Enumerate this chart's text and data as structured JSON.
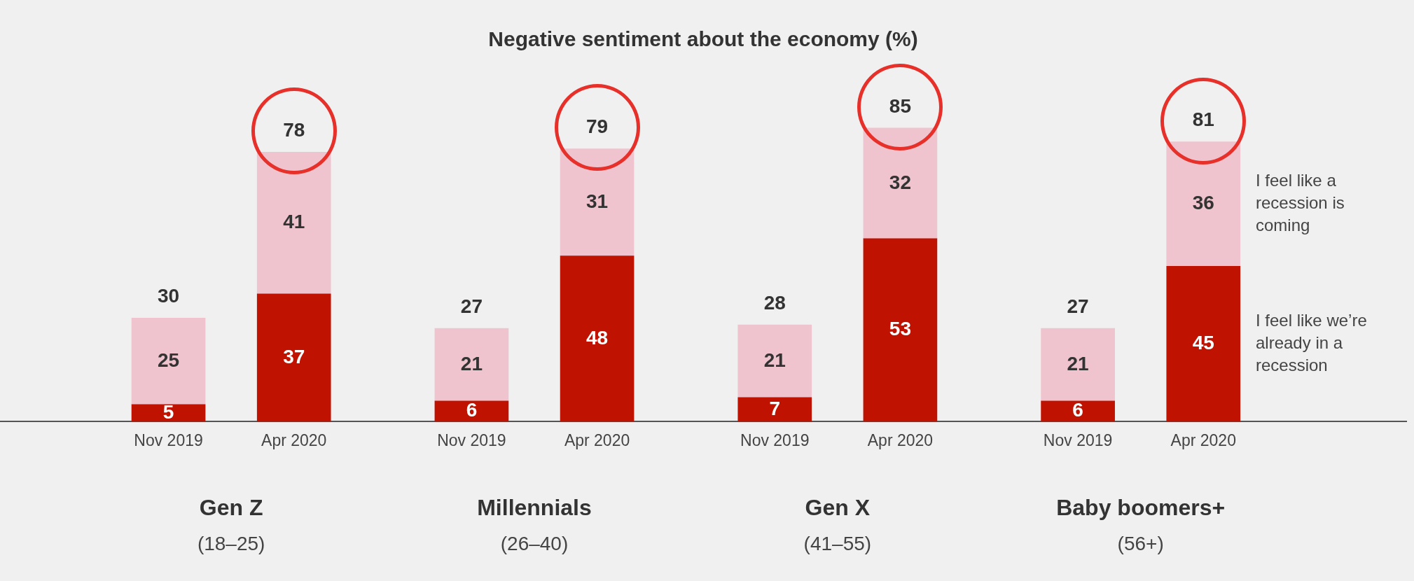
{
  "chart_data": {
    "type": "bar",
    "title": "Negative sentiment about the economy (%)",
    "categories": [
      "Nov 2019",
      "Apr 2020",
      "Nov 2019",
      "Apr 2020",
      "Nov 2019",
      "Apr 2020",
      "Nov 2019",
      "Apr 2020"
    ],
    "series": [
      {
        "name": "I feel like we’re already in a recession",
        "color": "#c01200",
        "values": [
          5,
          37,
          6,
          48,
          7,
          53,
          6,
          45
        ]
      },
      {
        "name": "I feel like a recession is coming",
        "color": "#efc4ce",
        "values": [
          25,
          41,
          21,
          31,
          21,
          32,
          21,
          36
        ]
      }
    ],
    "stacked": true,
    "data_labels": true,
    "totals": [
      "30",
      "78",
      "27",
      "79",
      "28",
      "85",
      "27",
      "81"
    ],
    "annotations": [
      "Gen Z",
      "(18–25)",
      "Millennials",
      "(26–40)",
      "Gen X",
      "(41–55)",
      "Baby boomers+",
      "(56+)"
    ],
    "legend": "right"
  }
}
